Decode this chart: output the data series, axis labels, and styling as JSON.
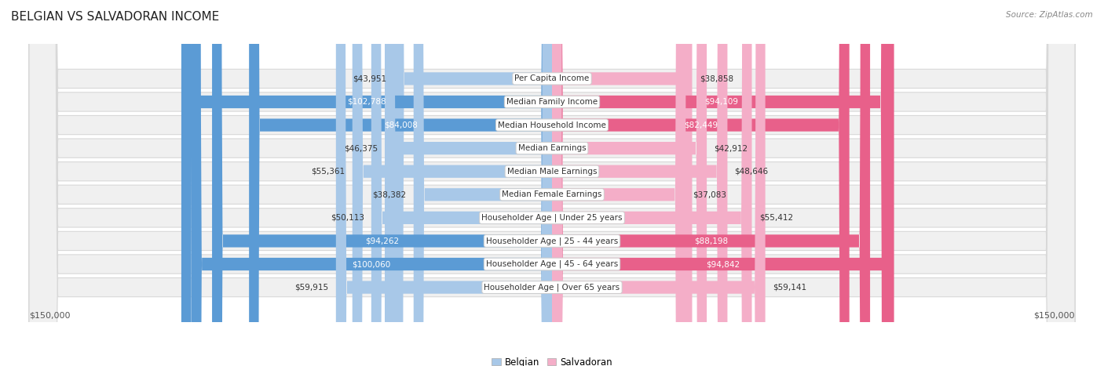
{
  "title": "BELGIAN VS SALVADORAN INCOME",
  "source": "Source: ZipAtlas.com",
  "categories": [
    "Per Capita Income",
    "Median Family Income",
    "Median Household Income",
    "Median Earnings",
    "Median Male Earnings",
    "Median Female Earnings",
    "Householder Age | Under 25 years",
    "Householder Age | 25 - 44 years",
    "Householder Age | 45 - 64 years",
    "Householder Age | Over 65 years"
  ],
  "belgian_values": [
    43951,
    102788,
    84008,
    46375,
    55361,
    38382,
    50113,
    94262,
    100060,
    59915
  ],
  "salvadoran_values": [
    38858,
    94109,
    82449,
    42912,
    48646,
    37083,
    55412,
    88198,
    94842,
    59141
  ],
  "belgian_labels": [
    "$43,951",
    "$102,788",
    "$84,008",
    "$46,375",
    "$55,361",
    "$38,382",
    "$50,113",
    "$94,262",
    "$100,060",
    "$59,915"
  ],
  "salvadoran_labels": [
    "$38,858",
    "$94,109",
    "$82,449",
    "$42,912",
    "$48,646",
    "$37,083",
    "$55,412",
    "$88,198",
    "$94,842",
    "$59,141"
  ],
  "belgian_color_light": "#a8c8e8",
  "belgian_color_dark": "#5b9bd5",
  "salvadoran_color_light": "#f4aec8",
  "salvadoran_color_dark": "#e8608a",
  "max_value": 150000,
  "title_fontsize": 11,
  "source_fontsize": 7.5,
  "label_fontsize": 7.5,
  "category_fontsize": 7.5,
  "legend_fontsize": 8.5,
  "high_threshold": 75000,
  "row_bg": "#f0f0f0",
  "row_border": "#d8d8d8"
}
